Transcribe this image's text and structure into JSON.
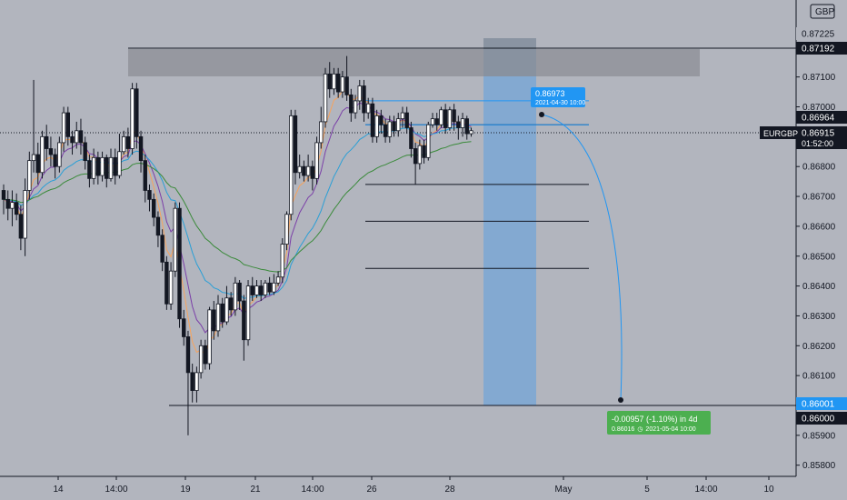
{
  "chart_data": {
    "type": "candlestick",
    "symbol": "EURGBP",
    "currency": "GBP",
    "countdown": "01:52:00",
    "x_labels": [
      "14",
      "14:00",
      "19",
      "21",
      "14:00",
      "26",
      "28",
      "May",
      "5",
      "14:00",
      "10"
    ],
    "y_ticks": [
      0.871,
      0.87,
      0.869,
      0.868,
      0.867,
      0.866,
      0.865,
      0.864,
      0.863,
      0.862,
      0.861,
      0.859,
      0.858
    ],
    "price_levels": {
      "current": {
        "value": 0.86915,
        "label": "0.86915",
        "color": "#131722"
      },
      "upper_a": {
        "value": 0.87225,
        "label": "0.87225",
        "color": "#b2b5be"
      },
      "upper_b": {
        "value": 0.87192,
        "label": "0.87192",
        "color": "#131722"
      },
      "mid": {
        "value": 0.86964,
        "label": "0.86964",
        "color": "#131722"
      },
      "target_a": {
        "value": 0.86001,
        "label": "0.86001",
        "color": "#2196f3"
      },
      "target_b": {
        "value": 0.86,
        "label": "0.86000",
        "color": "#131722"
      }
    },
    "horizontal_lines": [
      0.8694,
      0.8674,
      0.86617,
      0.86459,
      0.86
    ],
    "forecast": {
      "start": {
        "value": "0.86973",
        "time": "2021-04-30 10:00"
      },
      "end": {
        "change": "-0.00957 (-1.10%) in 4d",
        "value": "0.86016",
        "time": "2021-05-04  10:00"
      }
    },
    "candles": [
      [
        0.8672,
        0.8669,
        0.8664,
        0.8674
      ],
      [
        0.8669,
        0.8666,
        0.8662,
        0.8672
      ],
      [
        0.8666,
        0.8668,
        0.866,
        0.8672
      ],
      [
        0.8668,
        0.8664,
        0.8662,
        0.8671
      ],
      [
        0.8664,
        0.8656,
        0.8652,
        0.8667
      ],
      [
        0.8656,
        0.8672,
        0.865,
        0.8676
      ],
      [
        0.8672,
        0.8682,
        0.8669,
        0.8685
      ],
      [
        0.8682,
        0.8684,
        0.8678,
        0.8709
      ],
      [
        0.8684,
        0.8678,
        0.8674,
        0.8688
      ],
      [
        0.8678,
        0.869,
        0.8676,
        0.8692
      ],
      [
        0.869,
        0.8686,
        0.8682,
        0.8694
      ],
      [
        0.8686,
        0.8684,
        0.868,
        0.869
      ],
      [
        0.8684,
        0.868,
        0.8676,
        0.8686
      ],
      [
        0.868,
        0.8688,
        0.8678,
        0.869
      ],
      [
        0.8688,
        0.8698,
        0.8685,
        0.87
      ],
      [
        0.8698,
        0.869,
        0.8687,
        0.87
      ],
      [
        0.869,
        0.8688,
        0.8684,
        0.8692
      ],
      [
        0.8688,
        0.8692,
        0.8686,
        0.8695
      ],
      [
        0.8692,
        0.8688,
        0.8684,
        0.8696
      ],
      [
        0.8688,
        0.8682,
        0.8679,
        0.869
      ],
      [
        0.8682,
        0.8676,
        0.8673,
        0.8684
      ],
      [
        0.8676,
        0.8683,
        0.8674,
        0.8686
      ],
      [
        0.8683,
        0.8677,
        0.8674,
        0.8685
      ],
      [
        0.8677,
        0.8683,
        0.8675,
        0.8685
      ],
      [
        0.8683,
        0.8676,
        0.8673,
        0.8684
      ],
      [
        0.8676,
        0.8683,
        0.8675,
        0.8686
      ],
      [
        0.8683,
        0.8677,
        0.8674,
        0.8686
      ],
      [
        0.8677,
        0.8685,
        0.8676,
        0.8691
      ],
      [
        0.8685,
        0.869,
        0.8684,
        0.8692
      ],
      [
        0.869,
        0.8686,
        0.8683,
        0.8693
      ],
      [
        0.8686,
        0.8706,
        0.8684,
        0.8708
      ],
      [
        0.8706,
        0.869,
        0.8686,
        0.8708
      ],
      [
        0.869,
        0.8682,
        0.8678,
        0.8692
      ],
      [
        0.8682,
        0.8672,
        0.8668,
        0.8684
      ],
      [
        0.8672,
        0.8669,
        0.8665,
        0.8674
      ],
      [
        0.8669,
        0.8663,
        0.866,
        0.8671
      ],
      [
        0.8663,
        0.8657,
        0.8653,
        0.8665
      ],
      [
        0.8657,
        0.8648,
        0.8645,
        0.8659
      ],
      [
        0.8648,
        0.8634,
        0.8632,
        0.865
      ],
      [
        0.8634,
        0.8645,
        0.8632,
        0.8648
      ],
      [
        0.8645,
        0.8666,
        0.8643,
        0.8668
      ],
      [
        0.8666,
        0.8629,
        0.8626,
        0.8668
      ],
      [
        0.8629,
        0.8623,
        0.862,
        0.8632
      ],
      [
        0.8623,
        0.8611,
        0.859,
        0.8625
      ],
      [
        0.8611,
        0.8605,
        0.8601,
        0.8614
      ],
      [
        0.8605,
        0.8611,
        0.8601,
        0.8613
      ],
      [
        0.8611,
        0.862,
        0.8609,
        0.8622
      ],
      [
        0.862,
        0.8614,
        0.8612,
        0.8622
      ],
      [
        0.8614,
        0.8632,
        0.8612,
        0.8633
      ],
      [
        0.8632,
        0.8625,
        0.8622,
        0.8635
      ],
      [
        0.8625,
        0.8634,
        0.8623,
        0.8637
      ],
      [
        0.8634,
        0.8628,
        0.8626,
        0.8636
      ],
      [
        0.8628,
        0.8636,
        0.8627,
        0.864
      ],
      [
        0.8636,
        0.8632,
        0.863,
        0.8638
      ],
      [
        0.8632,
        0.8641,
        0.863,
        0.8643
      ],
      [
        0.8641,
        0.8635,
        0.8632,
        0.8642
      ],
      [
        0.8635,
        0.8622,
        0.8615,
        0.8637
      ],
      [
        0.8622,
        0.864,
        0.862,
        0.8642
      ],
      [
        0.864,
        0.8637,
        0.8635,
        0.8643
      ],
      [
        0.8637,
        0.864,
        0.8636,
        0.8642
      ],
      [
        0.864,
        0.8637,
        0.8635,
        0.8642
      ],
      [
        0.8637,
        0.8641,
        0.8636,
        0.8642
      ],
      [
        0.8641,
        0.8638,
        0.8637,
        0.8643
      ],
      [
        0.8638,
        0.8641,
        0.8637,
        0.8644
      ],
      [
        0.8641,
        0.8643,
        0.864,
        0.8645
      ],
      [
        0.8643,
        0.8654,
        0.8641,
        0.8656
      ],
      [
        0.8654,
        0.8664,
        0.8652,
        0.8665
      ],
      [
        0.8664,
        0.8697,
        0.8662,
        0.8699
      ],
      [
        0.8697,
        0.8678,
        0.8674,
        0.8699
      ],
      [
        0.8678,
        0.868,
        0.8676,
        0.8684
      ],
      [
        0.868,
        0.8677,
        0.8675,
        0.8682
      ],
      [
        0.8677,
        0.868,
        0.8675,
        0.8684
      ],
      [
        0.868,
        0.8676,
        0.8672,
        0.8682
      ],
      [
        0.8676,
        0.8688,
        0.8674,
        0.869
      ],
      [
        0.8688,
        0.8695,
        0.8686,
        0.87
      ],
      [
        0.8695,
        0.8711,
        0.8693,
        0.8713
      ],
      [
        0.8711,
        0.8706,
        0.8703,
        0.8715
      ],
      [
        0.8706,
        0.8711,
        0.8704,
        0.8713
      ],
      [
        0.8711,
        0.8705,
        0.8703,
        0.8713
      ],
      [
        0.8705,
        0.871,
        0.8703,
        0.8712
      ],
      [
        0.871,
        0.8704,
        0.8702,
        0.8717
      ],
      [
        0.8704,
        0.8698,
        0.8695,
        0.8706
      ],
      [
        0.8698,
        0.8702,
        0.8696,
        0.8704
      ],
      [
        0.8702,
        0.8707,
        0.8699,
        0.8709
      ],
      [
        0.8707,
        0.8698,
        0.8695,
        0.8709
      ],
      [
        0.8698,
        0.8701,
        0.8696,
        0.8703
      ],
      [
        0.8701,
        0.869,
        0.8688,
        0.8703
      ],
      [
        0.869,
        0.8697,
        0.8688,
        0.8699
      ],
      [
        0.8697,
        0.8694,
        0.8691,
        0.8699
      ],
      [
        0.8694,
        0.869,
        0.8688,
        0.8696
      ],
      [
        0.869,
        0.8695,
        0.8688,
        0.8697
      ],
      [
        0.8695,
        0.8692,
        0.869,
        0.8697
      ],
      [
        0.8692,
        0.8696,
        0.869,
        0.8698
      ],
      [
        0.8696,
        0.8698,
        0.8693,
        0.87
      ],
      [
        0.8698,
        0.8693,
        0.8691,
        0.87
      ],
      [
        0.8693,
        0.8686,
        0.8683,
        0.8695
      ],
      [
        0.8686,
        0.8681,
        0.8674,
        0.8688
      ],
      [
        0.8681,
        0.8687,
        0.8679,
        0.8689
      ],
      [
        0.8687,
        0.8683,
        0.8681,
        0.8689
      ],
      [
        0.8683,
        0.8694,
        0.8682,
        0.8695
      ],
      [
        0.8694,
        0.8696,
        0.8693,
        0.8698
      ],
      [
        0.8696,
        0.8694,
        0.8692,
        0.8698
      ],
      [
        0.8694,
        0.8699,
        0.8693,
        0.87
      ],
      [
        0.8699,
        0.8693,
        0.8691,
        0.8701
      ],
      [
        0.8693,
        0.8699,
        0.8692,
        0.87
      ],
      [
        0.8699,
        0.8695,
        0.8692,
        0.8701
      ],
      [
        0.8695,
        0.8693,
        0.8689,
        0.8697
      ],
      [
        0.8693,
        0.8696,
        0.869,
        0.8698
      ],
      [
        0.8696,
        0.8691,
        0.8689,
        0.8697
      ],
      [
        0.8691,
        0.8692,
        0.869,
        0.8693
      ]
    ]
  }
}
